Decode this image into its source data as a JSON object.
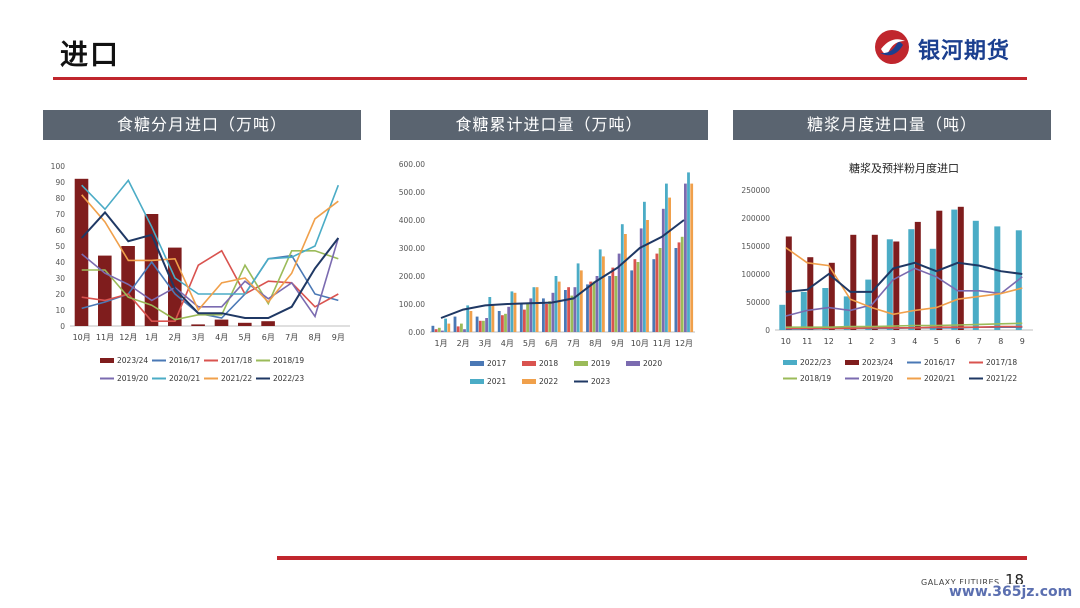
{
  "header": {
    "title": "进口",
    "logo_text": "银河期货"
  },
  "panels": [
    {
      "title": "食糖分月进口（万吨）"
    },
    {
      "title": "食糖累计进口量（万吨）"
    },
    {
      "title": "糖浆月度进口量（吨）"
    }
  ],
  "footer": {
    "brand": "GALAXY FUTURES",
    "page": "18",
    "watermark": "www.365jz.com"
  },
  "colors": {
    "accent_red": "#c0262d",
    "panel_bg": "#5a6470",
    "brand_blue": "#1b3f8f",
    "dark_red": "#7f1d1d",
    "blue": "#4a78b5",
    "red": "#d9534f",
    "green": "#9bbb59",
    "purple": "#7b6bb0",
    "teal": "#4bacc6",
    "orange": "#f0a04b",
    "navy": "#1f3864"
  },
  "chart_data": [
    {
      "type": "bar",
      "title": "",
      "categories": [
        "10月",
        "11月",
        "12月",
        "1月",
        "2月",
        "3月",
        "4月",
        "5月",
        "6月",
        "7月",
        "8月",
        "9月"
      ],
      "ylim": [
        0,
        100
      ],
      "yticks": [
        0,
        10,
        20,
        30,
        40,
        50,
        60,
        70,
        80,
        90,
        100
      ],
      "legend": "bottom",
      "series": [
        {
          "name": "2023/24",
          "type": "bar",
          "color": "#7f1d1d",
          "values": [
            92,
            44,
            50,
            70,
            49,
            1,
            4,
            2,
            3,
            null,
            null,
            null
          ]
        },
        {
          "name": "2016/17",
          "type": "line",
          "color": "#4a78b5",
          "values": [
            11,
            15,
            20,
            40,
            20,
            8,
            5,
            20,
            42,
            44,
            20,
            16
          ]
        },
        {
          "name": "2017/18",
          "type": "line",
          "color": "#d9534f",
          "values": [
            18,
            16,
            20,
            3,
            3,
            38,
            47,
            20,
            28,
            27,
            12,
            20
          ]
        },
        {
          "name": "2018/19",
          "type": "line",
          "color": "#9bbb59",
          "values": [
            35,
            35,
            18,
            13,
            4,
            7,
            7,
            38,
            14,
            47,
            47,
            42
          ]
        },
        {
          "name": "2019/20",
          "type": "line",
          "color": "#7b6bb0",
          "values": [
            45,
            33,
            26,
            16,
            24,
            12,
            12,
            28,
            17,
            27,
            6,
            55
          ]
        },
        {
          "name": "2020/21",
          "type": "line",
          "color": "#4bacc6",
          "values": [
            88,
            73,
            91,
            62,
            30,
            20,
            20,
            20,
            42,
            43,
            50,
            88
          ]
        },
        {
          "name": "2021/22",
          "type": "line",
          "color": "#f0a04b",
          "values": [
            82,
            65,
            41,
            41,
            42,
            10,
            27,
            30,
            15,
            33,
            67,
            78
          ]
        },
        {
          "name": "2022/23",
          "type": "line",
          "color": "#1f3864",
          "values": [
            55,
            71,
            53,
            57,
            23,
            8,
            8,
            5,
            5,
            12,
            36,
            55
          ]
        }
      ]
    },
    {
      "type": "bar",
      "title": "",
      "categories": [
        "1月",
        "2月",
        "3月",
        "4月",
        "5月",
        "6月",
        "7月",
        "8月",
        "9月",
        "10月",
        "11月",
        "12月"
      ],
      "ylim": [
        0,
        600
      ],
      "yticks": [
        "0.00",
        "100.00",
        "200.00",
        "300.00",
        "400.00",
        "500.00",
        "600.00"
      ],
      "legend": "bottom",
      "series": [
        {
          "name": "2017",
          "type": "bar",
          "color": "#4a78b5",
          "values": [
            22,
            55,
            55,
            75,
            100,
            120,
            150,
            170,
            200,
            220,
            260,
            300
          ]
        },
        {
          "name": "2018",
          "type": "bar",
          "color": "#d9534f",
          "values": [
            10,
            20,
            40,
            60,
            80,
            100,
            160,
            180,
            230,
            260,
            280,
            320
          ]
        },
        {
          "name": "2019",
          "type": "bar",
          "color": "#9bbb59",
          "values": [
            15,
            30,
            40,
            65,
            100,
            110,
            130,
            180,
            200,
            250,
            300,
            340
          ]
        },
        {
          "name": "2020",
          "type": "bar",
          "color": "#7b6bb0",
          "values": [
            5,
            10,
            50,
            90,
            120,
            140,
            160,
            200,
            280,
            370,
            440,
            530
          ]
        },
        {
          "name": "2021",
          "type": "bar",
          "color": "#4bacc6",
          "values": [
            48,
            95,
            125,
            145,
            160,
            200,
            245,
            295,
            385,
            465,
            530,
            570
          ]
        },
        {
          "name": "2022",
          "type": "bar",
          "color": "#f0a04b",
          "values": [
            30,
            75,
            95,
            140,
            160,
            180,
            220,
            270,
            350,
            400,
            480,
            530
          ]
        },
        {
          "name": "2023",
          "type": "line",
          "color": "#1f3864",
          "values": [
            50,
            80,
            95,
            100,
            103,
            105,
            120,
            180,
            230,
            300,
            340,
            400
          ]
        }
      ]
    },
    {
      "type": "bar",
      "title": "糖浆及预拌粉月度进口",
      "categories": [
        "10",
        "11",
        "12",
        "1",
        "2",
        "3",
        "4",
        "5",
        "6",
        "7",
        "8",
        "9"
      ],
      "ylim": [
        0,
        250000
      ],
      "yticks": [
        0,
        50000,
        100000,
        150000,
        200000,
        250000
      ],
      "legend": "bottom",
      "series": [
        {
          "name": "2022/23",
          "type": "bar",
          "color": "#4bacc6",
          "values": [
            45000,
            68000,
            75000,
            60000,
            90000,
            162000,
            180000,
            145000,
            215000,
            195000,
            185000,
            178000
          ]
        },
        {
          "name": "2023/24",
          "type": "bar",
          "color": "#7f1d1d",
          "values": [
            167000,
            130000,
            120000,
            170000,
            170000,
            158000,
            193000,
            213000,
            220000,
            null,
            null,
            null
          ]
        },
        {
          "name": "2016/17",
          "type": "line",
          "color": "#4a78b5",
          "values": [
            2000,
            2000,
            3000,
            3000,
            3000,
            3000,
            4000,
            4000,
            4000,
            5000,
            5000,
            5000
          ]
        },
        {
          "name": "2017/18",
          "type": "line",
          "color": "#d9534f",
          "values": [
            3000,
            3000,
            3000,
            3000,
            4000,
            4000,
            4000,
            5000,
            5000,
            5000,
            6000,
            6000
          ]
        },
        {
          "name": "2018/19",
          "type": "line",
          "color": "#9bbb59",
          "values": [
            5000,
            5000,
            5000,
            6000,
            6000,
            7000,
            8000,
            8000,
            9000,
            10000,
            11000,
            12000
          ]
        },
        {
          "name": "2019/20",
          "type": "line",
          "color": "#7b6bb0",
          "values": [
            25000,
            35000,
            40000,
            35000,
            45000,
            90000,
            110000,
            95000,
            70000,
            70000,
            65000,
            95000
          ]
        },
        {
          "name": "2020/21",
          "type": "line",
          "color": "#f0a04b",
          "values": [
            147000,
            120000,
            115000,
            55000,
            40000,
            28000,
            35000,
            40000,
            55000,
            60000,
            65000,
            75000
          ]
        },
        {
          "name": "2021/22",
          "type": "line",
          "color": "#1f3864",
          "values": [
            68000,
            72000,
            100000,
            68000,
            68000,
            110000,
            120000,
            105000,
            120000,
            115000,
            105000,
            100000
          ]
        }
      ]
    }
  ]
}
